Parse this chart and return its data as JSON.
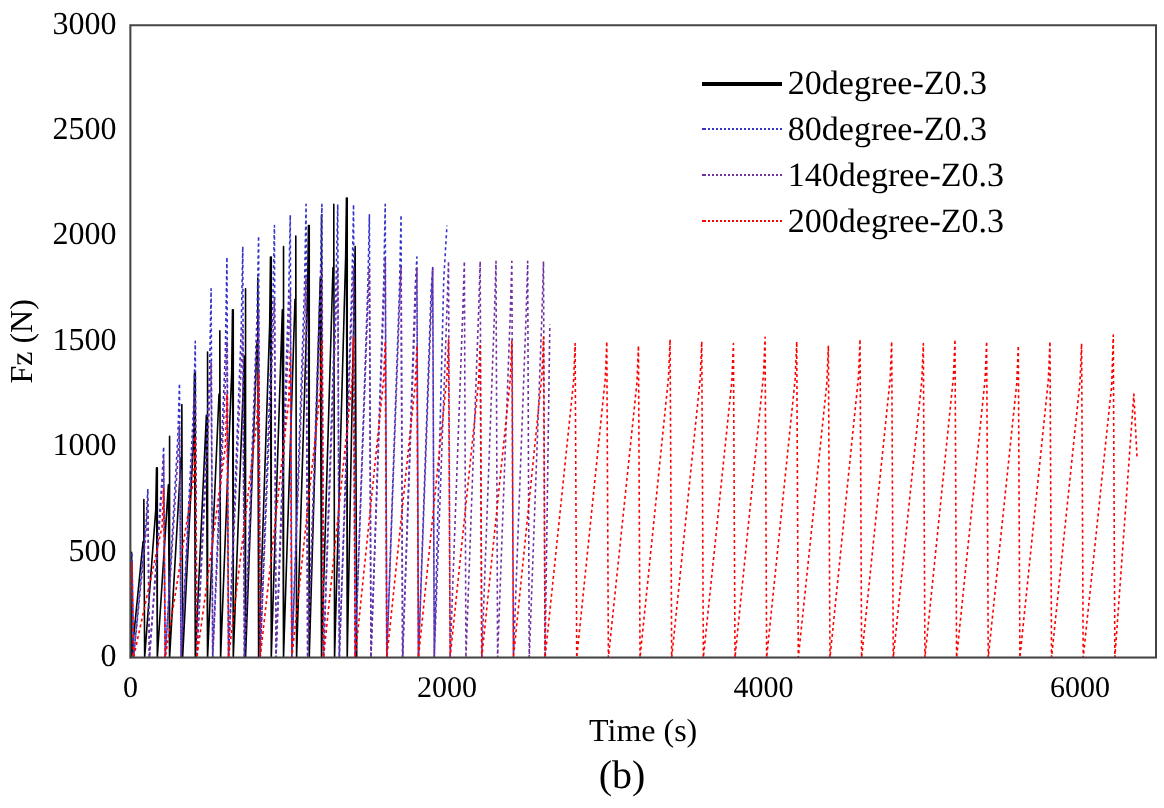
{
  "chart_data": {
    "type": "line",
    "xlabel": "Time (s)",
    "ylabel": "Fz (N)",
    "annotations": [
      "(b)"
    ],
    "xlim": [
      0,
      6480
    ],
    "xticks": [
      0,
      2000,
      4000,
      6000
    ],
    "ylim": [
      0,
      3000
    ],
    "yticks": [
      0,
      500,
      1000,
      1500,
      2000,
      2500,
      3000
    ],
    "grid": false,
    "legend": "top right",
    "marker": "none",
    "series": [
      {
        "name": "20degree-Z0.3",
        "color": "#000000",
        "line_style": "solid",
        "x": [
          0,
          5,
          10,
          80,
          85,
          90,
          160,
          165,
          170,
          240,
          245,
          250,
          320,
          325,
          330,
          400,
          405,
          410,
          480,
          485,
          490,
          560,
          565,
          570,
          640,
          645,
          650,
          720,
          725,
          730,
          800,
          805,
          810,
          880,
          885,
          890,
          960,
          965,
          970,
          1040,
          1045,
          1050,
          1120,
          1125,
          1130,
          1200,
          1205,
          1210,
          1280,
          1285,
          1290,
          1360,
          1365,
          1370,
          1420,
          1430
        ],
        "values": [
          300,
          500,
          0,
          550,
          750,
          0,
          700,
          900,
          0,
          820,
          1050,
          0,
          950,
          1200,
          0,
          1050,
          1350,
          0,
          1150,
          1450,
          0,
          1250,
          1550,
          0,
          1350,
          1650,
          0,
          1430,
          1750,
          0,
          1500,
          1800,
          0,
          1580,
          1900,
          0,
          1650,
          1950,
          0,
          1700,
          2000,
          0,
          1750,
          2050,
          0,
          1800,
          2100,
          0,
          1850,
          2150,
          0,
          1900,
          2180,
          0,
          1950,
          0
        ]
      },
      {
        "name": "80degree-Z0.3",
        "color": "#3333cc",
        "line_style": "dotted",
        "x": [
          0,
          10,
          20,
          100,
          110,
          120,
          200,
          210,
          220,
          300,
          310,
          320,
          400,
          410,
          420,
          500,
          510,
          520,
          600,
          610,
          620,
          700,
          710,
          720,
          800,
          810,
          820,
          900,
          910,
          920,
          1000,
          1010,
          1020,
          1100,
          1110,
          1120,
          1200,
          1210,
          1220,
          1300,
          1310,
          1320,
          1400,
          1410,
          1420,
          1500,
          1510,
          1520,
          1600,
          1610,
          1620,
          1700,
          1710,
          1720,
          1800,
          1810,
          1820,
          1900,
          1910,
          1920,
          1980,
          2000
        ],
        "values": [
          280,
          500,
          0,
          650,
          800,
          0,
          850,
          1000,
          0,
          1050,
          1300,
          0,
          1200,
          1500,
          0,
          1350,
          1750,
          0,
          1450,
          1900,
          0,
          1550,
          1950,
          0,
          1620,
          2000,
          0,
          1680,
          2050,
          0,
          1720,
          2100,
          0,
          1760,
          2150,
          0,
          1780,
          2150,
          0,
          1800,
          2150,
          0,
          1780,
          2150,
          0,
          1760,
          2100,
          0,
          1770,
          2150,
          0,
          1750,
          2100,
          0,
          1760,
          1900,
          0,
          1740,
          1850,
          0,
          1800,
          2050
        ]
      },
      {
        "name": "140degree-Z0.3",
        "color": "#7030a0",
        "line_style": "dotted",
        "x": [
          0,
          10,
          20,
          100,
          110,
          120,
          200,
          210,
          220,
          300,
          310,
          320,
          400,
          410,
          420,
          500,
          510,
          520,
          600,
          610,
          620,
          700,
          710,
          720,
          800,
          810,
          820,
          900,
          910,
          920,
          1000,
          1010,
          1020,
          1100,
          1110,
          1120,
          1200,
          1210,
          1220,
          1300,
          1310,
          1320,
          1400,
          1410,
          1420,
          1500,
          1510,
          1520,
          1600,
          1610,
          1620,
          1700,
          1710,
          1720,
          1800,
          1810,
          1820,
          1900,
          1910,
          1920,
          2000,
          2010,
          2020,
          2100,
          2110,
          2120,
          2200,
          2210,
          2220,
          2300,
          2310,
          2320,
          2400,
          2410,
          2420,
          2500,
          2510,
          2520,
          2600,
          2610,
          2620,
          2650
        ],
        "values": [
          250,
          450,
          0,
          600,
          750,
          0,
          800,
          950,
          0,
          950,
          1100,
          0,
          1080,
          1250,
          0,
          1200,
          1400,
          0,
          1300,
          1500,
          0,
          1380,
          1580,
          0,
          1450,
          1650,
          0,
          1500,
          1700,
          0,
          1550,
          1750,
          0,
          1590,
          1800,
          0,
          1620,
          1850,
          0,
          1650,
          1850,
          0,
          1660,
          1850,
          0,
          1670,
          1850,
          0,
          1680,
          1900,
          0,
          1670,
          1850,
          0,
          1660,
          1850,
          0,
          1650,
          1850,
          0,
          1650,
          1880,
          0,
          1640,
          1880,
          0,
          1640,
          1880,
          0,
          1630,
          1880,
          0,
          1630,
          1880,
          0,
          1620,
          1880,
          0,
          1620,
          1880,
          0,
          1580
        ]
      },
      {
        "name": "200degree-Z0.3",
        "color": "#ff0000",
        "line_style": "dotted",
        "x": [
          0,
          10,
          20,
          200,
          210,
          220,
          400,
          410,
          420,
          600,
          610,
          620,
          800,
          810,
          820,
          1000,
          1010,
          1020,
          1200,
          1210,
          1220,
          1400,
          1410,
          1420,
          1600,
          1610,
          1620,
          1800,
          1810,
          1820,
          2000,
          2010,
          2020,
          2200,
          2210,
          2220,
          2400,
          2410,
          2420,
          2600,
          2610,
          2620,
          2800,
          2810,
          2820,
          3000,
          3010,
          3020,
          3200,
          3210,
          3220,
          3400,
          3410,
          3420,
          3600,
          3610,
          3620,
          3800,
          3810,
          3820,
          4000,
          4010,
          4020,
          4200,
          4210,
          4220,
          4400,
          4410,
          4420,
          4600,
          4610,
          4620,
          4800,
          4810,
          4820,
          5000,
          5010,
          5020,
          5200,
          5210,
          5220,
          5400,
          5410,
          5420,
          5600,
          5610,
          5620,
          5800,
          5810,
          5820,
          6000,
          6010,
          6020,
          6200,
          6210,
          6220,
          6340,
          6360
        ],
        "values": [
          250,
          450,
          0,
          620,
          800,
          0,
          850,
          1050,
          0,
          1000,
          1250,
          0,
          1130,
          1350,
          0,
          1220,
          1450,
          0,
          1270,
          1500,
          0,
          1310,
          1520,
          0,
          1320,
          1500,
          0,
          1300,
          1480,
          0,
          1330,
          1510,
          0,
          1310,
          1490,
          0,
          1320,
          1500,
          0,
          1340,
          1520,
          0,
          1310,
          1490,
          0,
          1320,
          1500,
          0,
          1300,
          1480,
          0,
          1330,
          1510,
          0,
          1320,
          1500,
          0,
          1310,
          1490,
          0,
          1340,
          1520,
          0,
          1320,
          1500,
          0,
          1300,
          1480,
          0,
          1330,
          1510,
          0,
          1320,
          1500,
          0,
          1310,
          1490,
          0,
          1330,
          1510,
          0,
          1320,
          1500,
          0,
          1300,
          1480,
          0,
          1320,
          1500,
          0,
          1310,
          1490,
          0,
          1290,
          1530,
          0,
          1250,
          950
        ]
      }
    ]
  }
}
